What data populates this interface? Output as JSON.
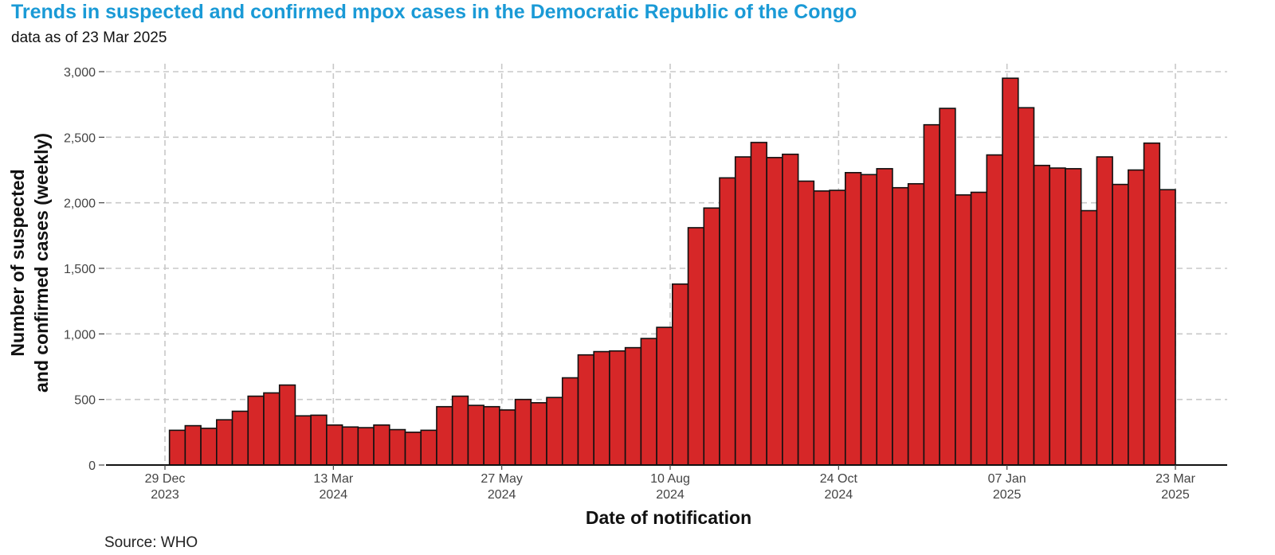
{
  "title": "Trends in suspected and confirmed mpox cases in the Democratic Republic of the Congo",
  "subtitle": "data as of 23 Mar 2025",
  "source": "Source: WHO",
  "colors": {
    "bar": "#d62728",
    "bar_stroke": "#111111",
    "grid": "#c8c8c8",
    "title": "#1a9ad6"
  },
  "chart_data": {
    "type": "bar",
    "xlabel": "Date of notification",
    "ylabel_lines": [
      "Number of suspected",
      "and confirmed cases (weekly)"
    ],
    "ylim": [
      0,
      3000
    ],
    "xlim": [
      "2023-12-01",
      "2025-03-31"
    ],
    "grid": true,
    "yticks": [
      {
        "value": 0,
        "label": "0"
      },
      {
        "value": 500,
        "label": "500"
      },
      {
        "value": 1000,
        "label": "1,000"
      },
      {
        "value": 1500,
        "label": "1,500"
      },
      {
        "value": 2000,
        "label": "2,000"
      },
      {
        "value": 2500,
        "label": "2,500"
      },
      {
        "value": 3000,
        "label": "3,000"
      }
    ],
    "xticks": [
      {
        "date": "2023-12-29",
        "label1": "29 Dec",
        "label2": "2023"
      },
      {
        "date": "2024-03-13",
        "label1": "13 Mar",
        "label2": "2024"
      },
      {
        "date": "2024-05-27",
        "label1": "27 May",
        "label2": "2024"
      },
      {
        "date": "2024-08-10",
        "label1": "10 Aug",
        "label2": "2024"
      },
      {
        "date": "2024-10-24",
        "label1": "24 Oct",
        "label2": "2024"
      },
      {
        "date": "2025-01-07",
        "label1": "07 Jan",
        "label2": "2025"
      },
      {
        "date": "2025-03-23",
        "label1": "23 Mar",
        "label2": "2025"
      }
    ],
    "bar_start": "2023-12-31",
    "bar_width_days": 7,
    "values": [
      265,
      300,
      280,
      345,
      410,
      525,
      550,
      610,
      375,
      380,
      305,
      290,
      285,
      305,
      270,
      250,
      265,
      445,
      525,
      455,
      445,
      420,
      500,
      475,
      515,
      665,
      840,
      865,
      870,
      895,
      965,
      1050,
      1380,
      1810,
      1960,
      2190,
      2350,
      2460,
      2345,
      2370,
      2165,
      2090,
      2095,
      2230,
      2215,
      2260,
      2115,
      2145,
      2595,
      2720,
      2060,
      2080,
      2365,
      2950,
      2725,
      2285,
      2265,
      2260,
      1940,
      2350,
      2140,
      2250,
      2455,
      2100
    ]
  }
}
